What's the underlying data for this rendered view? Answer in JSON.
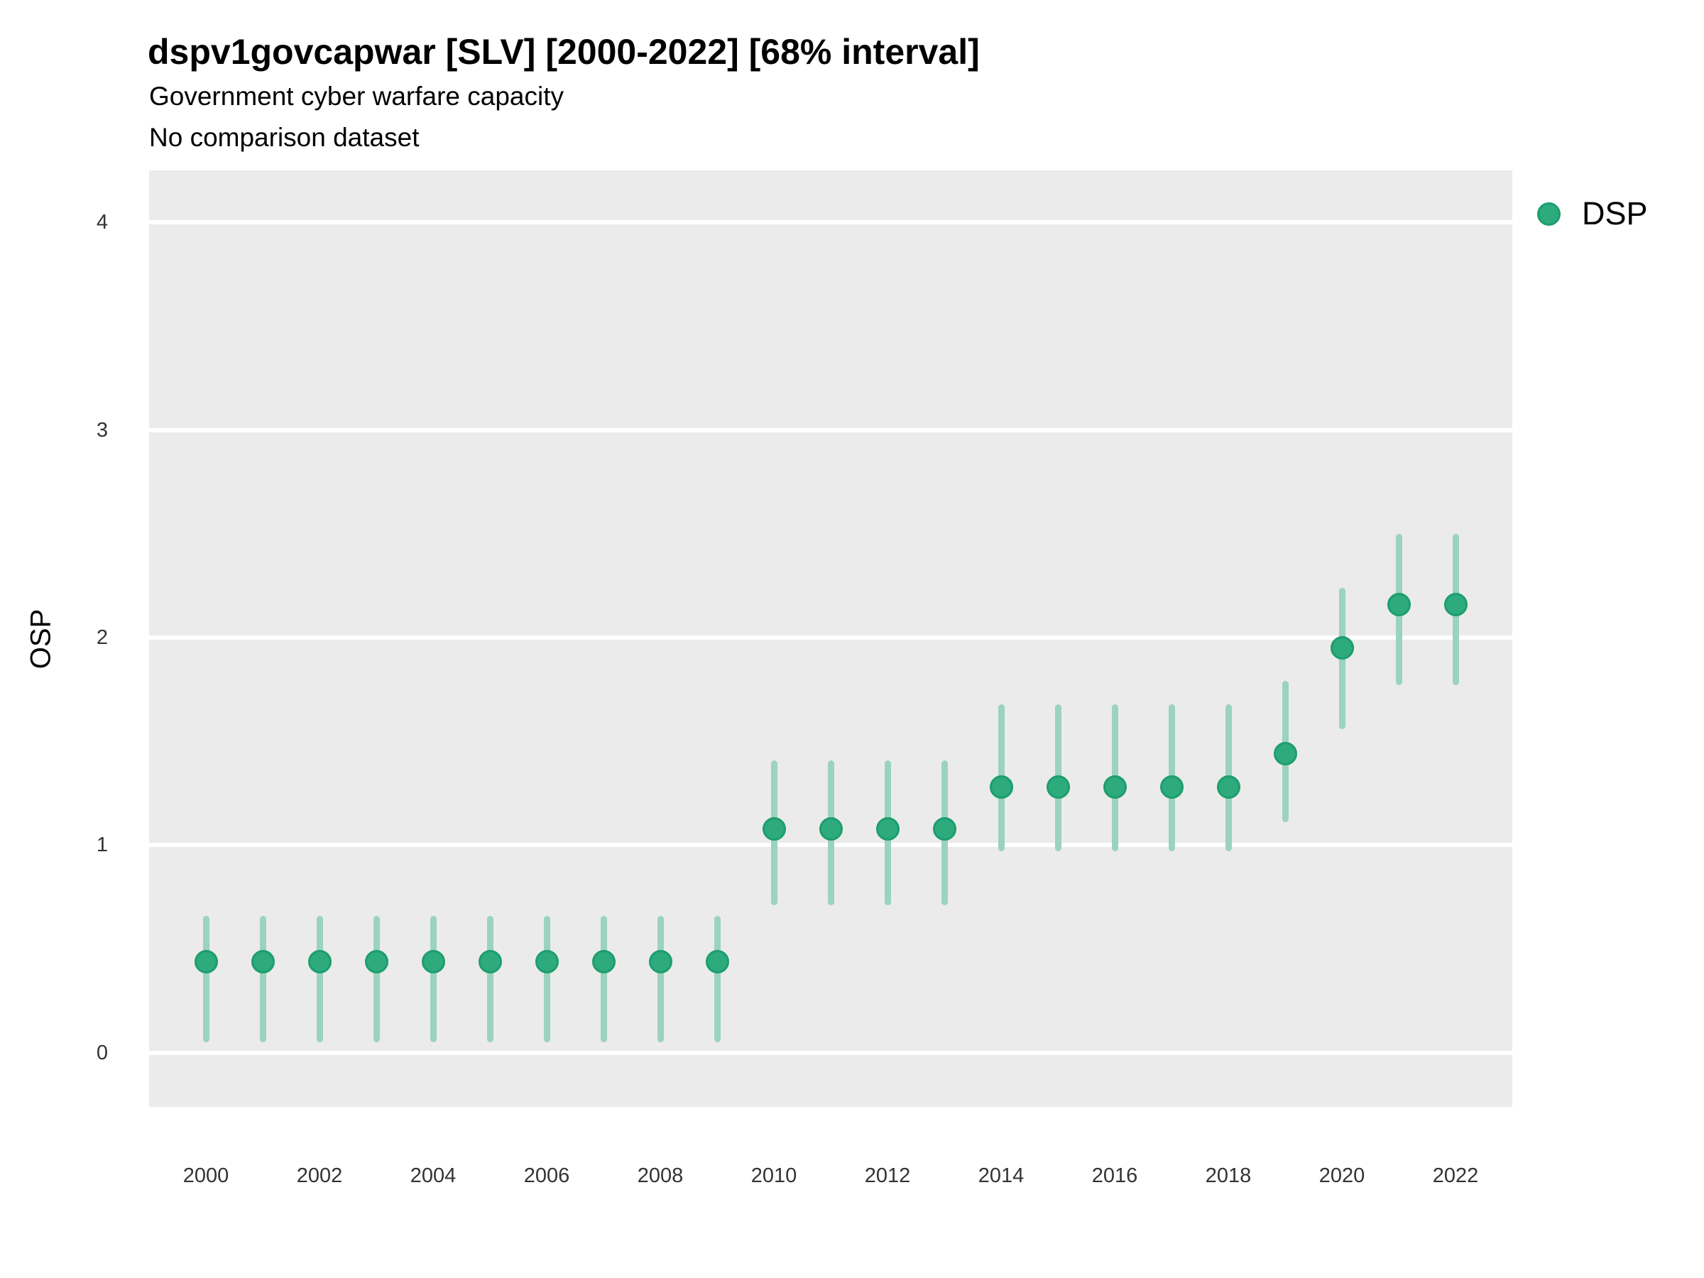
{
  "header": {
    "title": "dspv1govcapwar [SLV] [2000-2022] [68% interval]",
    "subtitle_line1": "Government cyber warfare capacity",
    "subtitle_line2": "No comparison dataset"
  },
  "legend": {
    "position": "right-top",
    "items": [
      {
        "label": "DSP",
        "color": "#2dab7d"
      }
    ]
  },
  "colors": {
    "point_fill": "#2dab7d",
    "point_stroke": "#1d9d70",
    "interval": "#9bd3bd",
    "panel_bg": "#ebebeb",
    "gridline": "#ffffff",
    "tick_text": "#333333",
    "title_text": "#000000"
  },
  "chart_data": {
    "type": "pointrange",
    "title": "dspv1govcapwar [SLV] [2000-2022] [68% interval]",
    "subtitle": "Government cyber warfare capacity — No comparison dataset",
    "interval_level": "68%",
    "xlabel": "",
    "ylabel": "OSP",
    "xlim": [
      1999,
      2023
    ],
    "ylim": [
      -0.26,
      4.25
    ],
    "x_ticks": [
      2000,
      2002,
      2004,
      2006,
      2008,
      2010,
      2012,
      2014,
      2016,
      2018,
      2020,
      2022
    ],
    "y_ticks": [
      0,
      1,
      2,
      3,
      4
    ],
    "grid": "major-y-only",
    "x": [
      2000,
      2001,
      2002,
      2003,
      2004,
      2005,
      2006,
      2007,
      2008,
      2009,
      2010,
      2011,
      2012,
      2013,
      2014,
      2015,
      2016,
      2017,
      2018,
      2019,
      2020,
      2021,
      2022
    ],
    "series": [
      {
        "name": "DSP",
        "estimates": [
          0.44,
          0.44,
          0.44,
          0.44,
          0.44,
          0.44,
          0.44,
          0.44,
          0.44,
          0.44,
          1.08,
          1.08,
          1.08,
          1.08,
          1.28,
          1.28,
          1.28,
          1.28,
          1.28,
          1.44,
          1.95,
          2.16,
          2.16
        ],
        "lower": [
          0.05,
          0.05,
          0.05,
          0.05,
          0.05,
          0.05,
          0.05,
          0.05,
          0.05,
          0.05,
          0.71,
          0.71,
          0.71,
          0.71,
          0.97,
          0.97,
          0.97,
          0.97,
          0.97,
          1.11,
          1.56,
          1.77,
          1.77
        ],
        "upper": [
          0.66,
          0.66,
          0.66,
          0.66,
          0.66,
          0.66,
          0.66,
          0.66,
          0.66,
          0.66,
          1.41,
          1.41,
          1.41,
          1.41,
          1.68,
          1.68,
          1.68,
          1.68,
          1.68,
          1.79,
          2.24,
          2.5,
          2.5
        ]
      }
    ]
  }
}
